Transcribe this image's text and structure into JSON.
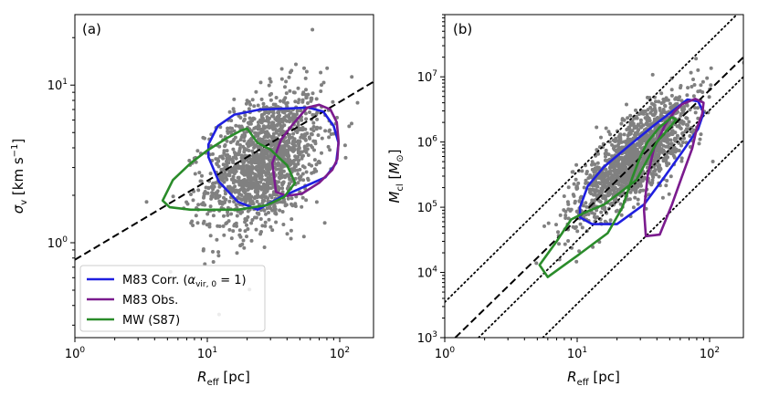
{
  "figure": {
    "panels": [
      "(a)",
      "(b)"
    ]
  },
  "chart_data": [
    {
      "type": "scatter",
      "panel_label": "(a)",
      "xscale": "log",
      "yscale": "log",
      "xlim": [
        1,
        180
      ],
      "ylim": [
        0.25,
        28
      ],
      "xlabel_main": "R",
      "xlabel_sub": "eff",
      "xlabel_unit": " [pc]",
      "ylabel_main": "σ",
      "ylabel_sub": "v",
      "ylabel_unit": " [km s",
      "ylabel_exp": "−1",
      "ylabel_close": "]",
      "xticks": [
        {
          "value": 1,
          "base": "10",
          "exp": "0"
        },
        {
          "value": 10,
          "base": "10",
          "exp": "1"
        },
        {
          "value": 100,
          "base": "10",
          "exp": "2"
        }
      ],
      "yticks": [
        {
          "value": 1,
          "base": "10",
          "exp": "0"
        },
        {
          "value": 10,
          "base": "10",
          "exp": "1"
        }
      ],
      "cloud": {
        "color": "#808080",
        "n": 1500,
        "x_log_mean": 1.43,
        "x_log_sd": 0.22,
        "y_log_mean": 0.52,
        "y_log_sd": 0.2,
        "slope": 0.5
      },
      "fit_line": {
        "name": "dashed fit",
        "style": "dashed",
        "x": [
          1,
          180
        ],
        "y": [
          0.78,
          10.5
        ]
      },
      "contours": [
        {
          "name": "M83 Corr. (α_vir,0 = 1)",
          "color": "#1f1fe0",
          "points": [
            [
              10.2,
              4.2
            ],
            [
              12,
              5.5
            ],
            [
              16,
              6.5
            ],
            [
              25,
              7.0
            ],
            [
              40,
              7.1
            ],
            [
              58,
              7.2
            ],
            [
              75,
              6.8
            ],
            [
              90,
              5.5
            ],
            [
              98,
              4.3
            ],
            [
              94,
              3.2
            ],
            [
              78,
              2.6
            ],
            [
              56,
              2.3
            ],
            [
              36,
              1.95
            ],
            [
              24,
              1.62
            ],
            [
              17,
              1.82
            ],
            [
              12.2,
              2.45
            ],
            [
              10.2,
              3.5
            ]
          ]
        },
        {
          "name": "M83 Obs.",
          "color": "#7b1b8e",
          "points": [
            [
              57,
              7.2
            ],
            [
              70,
              7.5
            ],
            [
              85,
              7.0
            ],
            [
              95,
              5.8
            ],
            [
              98,
              4.4
            ],
            [
              96,
              3.4
            ],
            [
              88,
              2.9
            ],
            [
              70,
              2.4
            ],
            [
              52,
              2.05
            ],
            [
              40,
              1.98
            ],
            [
              33,
              2.1
            ],
            [
              31,
              3.2
            ],
            [
              36,
              4.5
            ],
            [
              44,
              5.6
            ],
            [
              52,
              6.6
            ]
          ]
        },
        {
          "name": "MW (S87)",
          "color": "#2a8c2a",
          "points": [
            [
              4.6,
              1.85
            ],
            [
              5.5,
              2.5
            ],
            [
              7.5,
              3.2
            ],
            [
              10,
              3.85
            ],
            [
              14,
              4.6
            ],
            [
              18,
              5.15
            ],
            [
              20,
              5.3
            ],
            [
              24,
              4.3
            ],
            [
              30,
              3.9
            ],
            [
              40,
              3.1
            ],
            [
              46,
              2.4
            ],
            [
              38,
              1.95
            ],
            [
              28,
              1.73
            ],
            [
              17,
              1.62
            ],
            [
              7.5,
              1.62
            ],
            [
              5.2,
              1.68
            ]
          ]
        }
      ],
      "legend": {
        "placement": "lower-left",
        "entries": [
          {
            "prefix": "M83 Corr. (",
            "sym": "α",
            "sub": "vir, 0",
            "suffix": " = 1)",
            "color": "#1f1fe0"
          },
          {
            "prefix": "M83 Obs.",
            "sym": "",
            "sub": "",
            "suffix": "",
            "color": "#7b1b8e"
          },
          {
            "prefix": "MW (S87)",
            "sym": "",
            "sub": "",
            "suffix": "",
            "color": "#2a8c2a"
          }
        ]
      }
    },
    {
      "type": "scatter",
      "panel_label": "(b)",
      "xscale": "log",
      "yscale": "log",
      "xlim": [
        1,
        180
      ],
      "ylim": [
        1000,
        90000000
      ],
      "xlabel_main": "R",
      "xlabel_sub": "eff",
      "xlabel_unit": " [pc]",
      "ylabel_main": "M",
      "ylabel_sub": "cl",
      "ylabel_unit": " [",
      "ylabel_msun": "M",
      "ylabel_msun_sub": "⊙",
      "ylabel_close": "]",
      "xticks": [
        {
          "value": 1,
          "base": "10",
          "exp": "0"
        },
        {
          "value": 10,
          "base": "10",
          "exp": "1"
        },
        {
          "value": 100,
          "base": "10",
          "exp": "2"
        }
      ],
      "yticks": [
        {
          "value": 1000,
          "base": "10",
          "exp": "3"
        },
        {
          "value": 10000,
          "base": "10",
          "exp": "4"
        },
        {
          "value": 100000,
          "base": "10",
          "exp": "5"
        },
        {
          "value": 1000000,
          "base": "10",
          "exp": "6"
        },
        {
          "value": 10000000,
          "base": "10",
          "exp": "7"
        }
      ],
      "cloud": {
        "color": "#808080",
        "n": 1500,
        "x_log_mean": 1.43,
        "x_log_sd": 0.22,
        "y_log_mean": 5.75,
        "y_log_sd": 0.3,
        "slope": 2.0
      },
      "fit_line": {
        "name": "dashed fit",
        "style": "dashed",
        "x": [
          1.2,
          180
        ],
        "y": [
          1000,
          20000000
        ]
      },
      "dotted_lines": [
        {
          "x": [
            1,
            180
          ],
          "y": [
            3500,
            113000000
          ]
        },
        {
          "x": [
            1.8,
            180
          ],
          "y": [
            1000,
            10000000
          ]
        },
        {
          "x": [
            5.5,
            180
          ],
          "y": [
            1000,
            1070000
          ]
        }
      ],
      "contours": [
        {
          "name": "M83 Corr.",
          "color": "#1f1fe0",
          "points": [
            [
              10.5,
              100000
            ],
            [
              12,
              210000
            ],
            [
              16,
              420000
            ],
            [
              25,
              900000
            ],
            [
              38,
              1800000
            ],
            [
              55,
              3200000
            ],
            [
              68,
              4500000
            ],
            [
              82,
              4200000
            ],
            [
              90,
              2800000
            ],
            [
              82,
              1600000
            ],
            [
              62,
              700000
            ],
            [
              45,
              280000
            ],
            [
              32,
              110000
            ],
            [
              20,
              55000
            ],
            [
              13,
              55000
            ],
            [
              10.5,
              70000
            ]
          ]
        },
        {
          "name": "M83 Obs.",
          "color": "#7b1b8e",
          "points": [
            [
              62,
              3800000
            ],
            [
              78,
              4600000
            ],
            [
              90,
              4000000
            ],
            [
              88,
              2700000
            ],
            [
              80,
              1600000
            ],
            [
              74,
              800000
            ],
            [
              62,
              300000
            ],
            [
              52,
              110000
            ],
            [
              42,
              38000
            ],
            [
              33,
              36000
            ],
            [
              32,
              90000
            ],
            [
              34,
              300000
            ],
            [
              38,
              800000
            ],
            [
              46,
              1800000
            ],
            [
              54,
              2900000
            ]
          ]
        },
        {
          "name": "MW (S87)",
          "color": "#2a8c2a",
          "points": [
            [
              5.2,
              13000
            ],
            [
              6,
              8500
            ],
            [
              8,
              13000
            ],
            [
              10,
              18000
            ],
            [
              14,
              30000
            ],
            [
              17,
              40000
            ],
            [
              22,
              100000
            ],
            [
              26,
              280000
            ],
            [
              30,
              600000
            ],
            [
              34,
              1000000
            ],
            [
              42,
              1700000
            ],
            [
              52,
              2400000
            ],
            [
              56,
              2200000
            ],
            [
              40,
              1000000
            ],
            [
              28,
              260000
            ],
            [
              16,
              110000
            ],
            [
              11,
              80000
            ],
            [
              9,
              65000
            ],
            [
              7,
              30000
            ]
          ]
        }
      ]
    }
  ]
}
